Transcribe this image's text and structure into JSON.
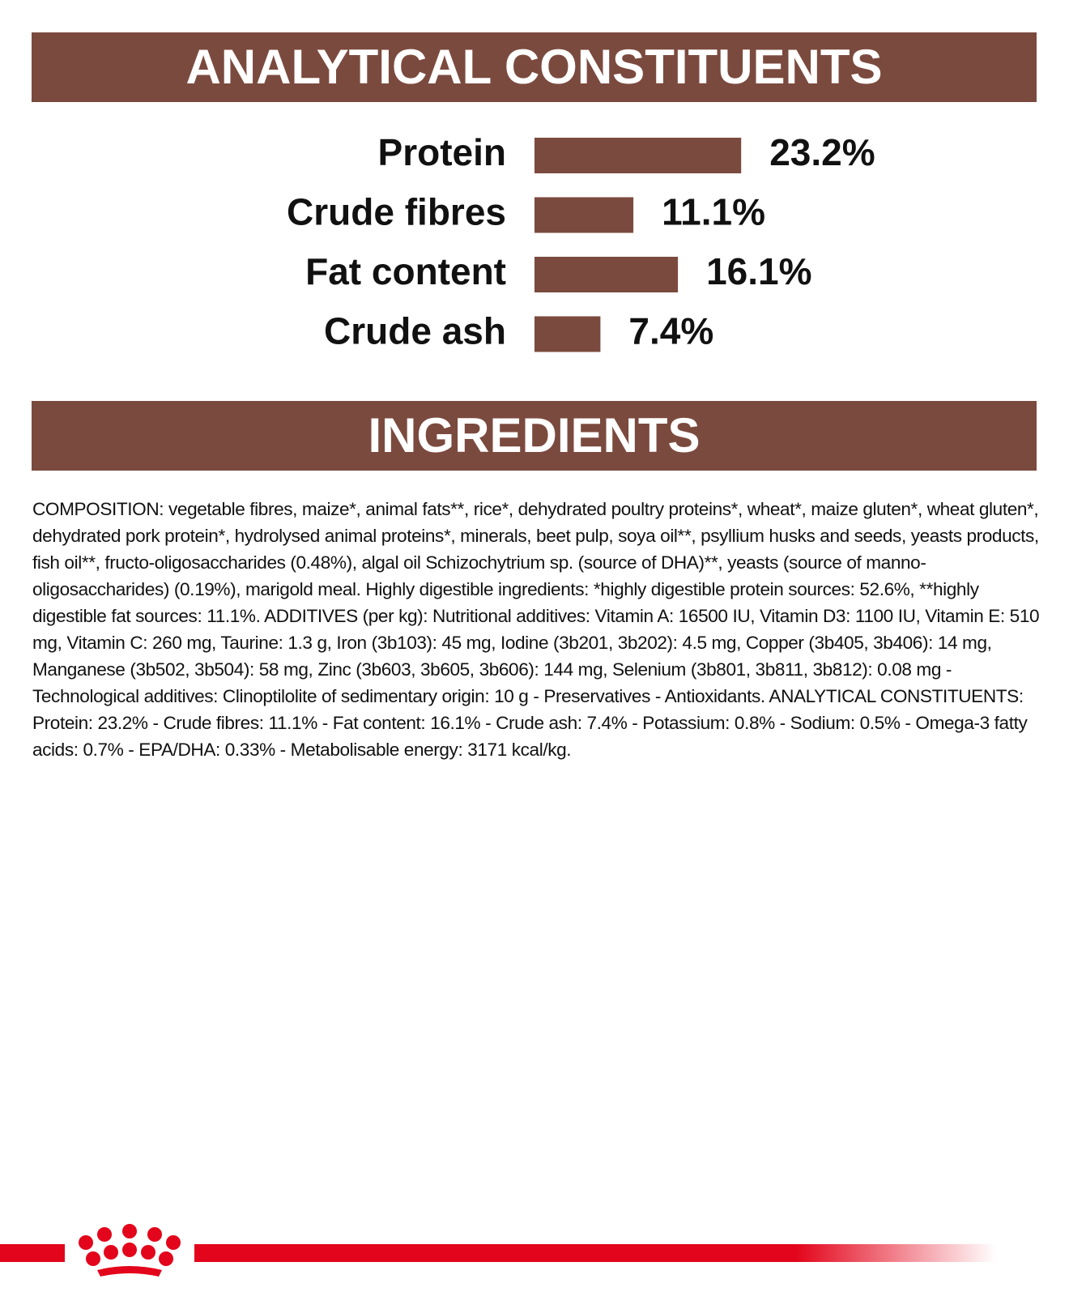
{
  "chart_data": {
    "type": "bar",
    "orientation": "horizontal",
    "title": "ANALYTICAL CONSTITUENTS",
    "categories": [
      "Protein",
      "Crude fibres",
      "Fat content",
      "Crude ash"
    ],
    "values": [
      23.2,
      11.1,
      16.1,
      7.4
    ],
    "value_labels": [
      "23.2%",
      "11.1%",
      "16.1%",
      "7.4%"
    ],
    "color": "#7b4a3e"
  },
  "ingredients": {
    "title": "INGREDIENTS",
    "text": "COMPOSITION: vegetable fibres, maize*, animal fats**, rice*, dehydrated poultry proteins*, wheat*, maize gluten*, wheat gluten*, dehydrated pork protein*, hydrolysed animal proteins*, minerals, beet pulp, soya oil**, psyllium husks and seeds, yeasts products, fish oil**, fructo-oligosaccharides (0.48%), algal oil Schizochytrium sp. (source of DHA)**, yeasts (source of manno-oligosaccharides) (0.19%), marigold meal. Highly digestible ingredients: *highly digestible protein sources: 52.6%, **highly digestible fat sources: 11.1%. ADDITIVES (per kg): Nutritional additives: Vitamin A: 16500 IU, Vitamin D3: 1100 IU, Vitamin E: 510 mg, Vitamin C: 260 mg, Taurine: 1.3 g, Iron (3b103): 45 mg, Iodine (3b201, 3b202): 4.5 mg, Copper (3b405, 3b406): 14 mg, Manganese (3b502, 3b504): 58 mg, Zinc (3b603, 3b605, 3b606): 144 mg, Selenium (3b801, 3b811, 3b812): 0.08 mg - Technological additives: Clinoptilolite of sedimentary origin: 10 g - Preservatives - Antioxidants. ANALYTICAL CONSTITUENTS: Protein: 23.2% - Crude fibres: 11.1% - Fat content: 16.1% - Crude ash: 7.4% - Potassium: 0.8% - Sodium: 0.5% - Omega-3 fatty acids: 0.7% - EPA/DHA: 0.33% - Metabolisable energy: 3171 kcal/kg."
  }
}
